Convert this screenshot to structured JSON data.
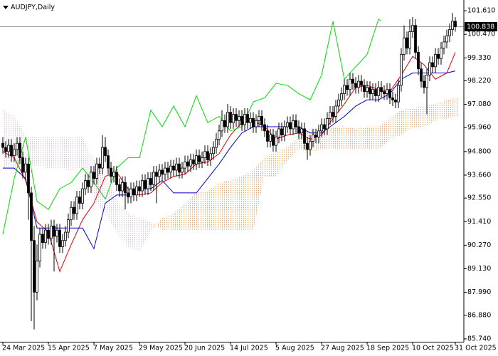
{
  "chart_data": {
    "type": "candlestick",
    "title": "AUDJPY,Daily",
    "xlim": [
      -1,
      162
    ],
    "ylim": [
      85.6,
      102.13
    ],
    "yticks": [
      {
        "value": 101.61,
        "label": "101.610"
      },
      {
        "value": 100.47,
        "label": "100.470"
      },
      {
        "value": 99.33,
        "label": "99.330"
      },
      {
        "value": 98.22,
        "label": "98.220"
      },
      {
        "value": 97.08,
        "label": "97.080"
      },
      {
        "value": 95.96,
        "label": "95.960"
      },
      {
        "value": 94.8,
        "label": "94.800"
      },
      {
        "value": 93.66,
        "label": "93.660"
      },
      {
        "value": 92.55,
        "label": "92.550"
      },
      {
        "value": 91.41,
        "label": "91.410"
      },
      {
        "value": 90.27,
        "label": "90.270"
      },
      {
        "value": 89.13,
        "label": "89.130"
      },
      {
        "value": 87.99,
        "label": "87.990"
      },
      {
        "value": 86.88,
        "label": "86.880"
      },
      {
        "value": 85.74,
        "label": "85.740"
      }
    ],
    "xticks": [
      {
        "value": 0,
        "label": "24 Mar 2025"
      },
      {
        "value": 16,
        "label": "15 Apr 2025"
      },
      {
        "value": 32,
        "label": "7 May 2025"
      },
      {
        "value": 48,
        "label": "29 May 2025"
      },
      {
        "value": 64,
        "label": "20 Jun 2025"
      },
      {
        "value": 80,
        "label": "14 Jul 2025"
      },
      {
        "value": 96,
        "label": "5 Aug 2025"
      },
      {
        "value": 112,
        "label": "27 Aug 2025"
      },
      {
        "value": 128,
        "label": "18 Sep 2025"
      },
      {
        "value": 144,
        "label": "10 Oct 2025"
      },
      {
        "value": 159,
        "label": "31 Oct 2025"
      }
    ],
    "last_price": {
      "value": 100.838,
      "label": "100.838"
    },
    "candle_color": "#000000",
    "up_color": "#ffffff",
    "down_color": "#000000",
    "open": [
      95.2,
      95.0,
      94.8,
      95.1,
      94.6,
      94.9,
      95.2,
      94.5,
      93.8,
      94.2,
      92.8,
      90.5,
      88.0,
      89.5,
      90.8,
      90.4,
      91.0,
      90.6,
      91.2,
      90.7,
      91.0,
      90.2,
      90.5,
      90.9,
      91.5,
      92.1,
      91.8,
      92.6,
      92.3,
      93.0,
      93.4,
      93.1,
      93.8,
      93.5,
      94.2,
      94.0,
      95.0,
      94.6,
      94.0,
      93.6,
      93.8,
      93.2,
      92.9,
      93.3,
      92.8,
      92.6,
      93.0,
      92.7,
      93.1,
      92.9,
      93.4,
      93.0,
      93.5,
      93.2,
      93.8,
      93.6,
      93.9,
      93.7,
      94.0,
      93.8,
      94.1,
      93.9,
      94.2,
      93.8,
      94.0,
      94.3,
      94.1,
      94.4,
      94.2,
      94.6,
      94.3,
      94.5,
      94.8,
      94.4,
      94.7,
      95.0,
      95.4,
      95.8,
      96.3,
      96.0,
      96.7,
      96.2,
      96.6,
      96.3,
      96.5,
      96.1,
      96.6,
      96.2,
      96.4,
      96.0,
      96.3,
      96.5,
      96.1,
      95.8,
      95.3,
      95.6,
      95.1,
      95.5,
      95.9,
      95.6,
      96.0,
      96.2,
      95.9,
      96.3,
      96.0,
      95.7,
      95.9,
      95.2,
      94.9,
      95.3,
      95.6,
      95.5,
      95.8,
      96.1,
      95.9,
      96.4,
      96.7,
      96.5,
      97.0,
      97.3,
      97.6,
      98.0,
      97.8,
      98.3,
      98.1,
      97.9,
      98.2,
      98.0,
      97.7,
      97.9,
      97.6,
      97.8,
      97.5,
      97.9,
      97.7,
      97.6,
      97.8,
      97.4,
      97.3,
      97.2,
      98.0,
      99.5,
      100.3,
      99.8,
      100.6,
      100.9,
      99.6,
      98.8,
      98.2,
      97.9,
      98.5,
      99.1,
      98.9,
      99.5,
      99.3,
      99.8,
      100.1,
      100.4,
      100.7,
      101.1
    ],
    "high": [
      95.5,
      95.3,
      95.4,
      95.4,
      95.2,
      95.5,
      95.5,
      94.8,
      94.5,
      94.5,
      93.1,
      91.2,
      90.3,
      91.1,
      91.1,
      91.3,
      91.3,
      91.5,
      91.5,
      91.3,
      91.3,
      90.8,
      91.2,
      91.8,
      92.4,
      92.4,
      92.9,
      92.9,
      93.3,
      93.7,
      93.7,
      94.1,
      94.1,
      94.5,
      94.5,
      95.6,
      95.5,
      94.9,
      94.3,
      94.1,
      94.1,
      93.5,
      93.6,
      93.6,
      93.1,
      93.3,
      93.3,
      93.4,
      93.4,
      93.7,
      93.7,
      93.8,
      93.8,
      94.1,
      94.1,
      94.2,
      94.2,
      94.3,
      94.3,
      94.4,
      94.4,
      94.5,
      94.5,
      94.3,
      94.6,
      94.6,
      94.7,
      94.7,
      94.9,
      94.9,
      94.8,
      95.1,
      95.1,
      95.0,
      95.3,
      95.7,
      96.1,
      96.8,
      96.6,
      97.1,
      97.0,
      96.9,
      96.9,
      96.8,
      96.8,
      96.9,
      96.9,
      96.7,
      96.7,
      96.6,
      96.8,
      96.8,
      96.4,
      96.1,
      95.9,
      95.9,
      95.8,
      96.2,
      96.2,
      96.3,
      96.5,
      96.5,
      96.6,
      96.6,
      96.3,
      96.2,
      96.2,
      95.5,
      95.6,
      95.9,
      95.9,
      96.1,
      96.4,
      96.4,
      96.7,
      97.0,
      97.0,
      97.3,
      97.6,
      97.9,
      98.3,
      98.3,
      98.6,
      98.6,
      98.4,
      98.5,
      98.5,
      98.3,
      98.2,
      98.2,
      98.1,
      98.1,
      98.2,
      98.2,
      98.0,
      98.1,
      98.1,
      97.7,
      97.6,
      98.3,
      99.8,
      100.9,
      100.6,
      101.2,
      101.3,
      101.2,
      99.9,
      99.1,
      98.5,
      98.8,
      99.4,
      99.4,
      99.8,
      99.8,
      100.1,
      100.4,
      100.7,
      101.0,
      101.5,
      101.3
    ],
    "low": [
      94.7,
      94.5,
      94.5,
      94.3,
      94.3,
      94.6,
      94.2,
      93.5,
      93.5,
      91.5,
      86.6,
      86.2,
      87.6,
      89.2,
      90.1,
      90.1,
      90.3,
      90.3,
      89.0,
      90.4,
      89.9,
      89.9,
      90.2,
      90.6,
      91.2,
      91.5,
      91.5,
      92.0,
      92.0,
      92.7,
      92.8,
      92.8,
      93.2,
      93.2,
      93.7,
      93.7,
      94.3,
      93.7,
      93.3,
      93.3,
      92.9,
      92.6,
      92.6,
      92.0,
      92.3,
      92.3,
      92.4,
      92.4,
      92.6,
      92.6,
      92.7,
      92.7,
      92.9,
      92.9,
      92.3,
      93.3,
      93.4,
      93.4,
      93.5,
      93.5,
      93.6,
      93.6,
      93.5,
      93.5,
      93.7,
      93.8,
      93.8,
      93.9,
      93.9,
      94.0,
      94.0,
      94.2,
      94.1,
      94.1,
      94.4,
      94.7,
      95.1,
      95.5,
      95.7,
      95.7,
      95.9,
      95.9,
      96.0,
      96.0,
      95.8,
      95.8,
      95.9,
      95.9,
      95.7,
      95.7,
      96.0,
      95.8,
      95.5,
      95.0,
      95.0,
      94.8,
      94.8,
      95.2,
      95.3,
      95.3,
      95.7,
      95.6,
      95.6,
      95.7,
      95.4,
      95.4,
      94.9,
      94.4,
      94.6,
      95.0,
      95.2,
      95.2,
      95.5,
      95.6,
      95.6,
      96.1,
      96.2,
      96.2,
      96.7,
      97.0,
      97.3,
      97.5,
      97.5,
      97.8,
      97.6,
      97.6,
      97.7,
      97.4,
      97.4,
      97.3,
      97.3,
      97.2,
      97.2,
      97.4,
      97.3,
      97.3,
      97.1,
      97.0,
      96.9,
      96.9,
      97.7,
      99.2,
      99.5,
      99.5,
      100.3,
      99.3,
      98.5,
      97.9,
      97.6,
      96.6,
      98.2,
      98.6,
      98.6,
      99.0,
      99.0,
      99.5,
      99.8,
      100.1,
      100.4,
      100.6
    ],
    "close": [
      95.0,
      94.8,
      95.1,
      94.6,
      94.9,
      95.2,
      94.5,
      93.8,
      94.2,
      92.8,
      90.5,
      88.0,
      89.5,
      90.8,
      90.4,
      91.0,
      90.6,
      91.2,
      90.7,
      91.0,
      90.2,
      90.5,
      90.9,
      91.5,
      92.1,
      91.8,
      92.6,
      92.3,
      93.0,
      93.4,
      93.1,
      93.8,
      93.5,
      94.2,
      94.0,
      95.0,
      94.6,
      94.0,
      93.6,
      93.8,
      93.2,
      92.9,
      93.3,
      92.8,
      92.6,
      93.0,
      92.7,
      93.1,
      92.9,
      93.4,
      93.0,
      93.5,
      93.2,
      93.8,
      93.6,
      93.9,
      93.7,
      94.0,
      93.8,
      94.1,
      93.9,
      94.2,
      93.8,
      94.0,
      94.3,
      94.1,
      94.4,
      94.2,
      94.6,
      94.3,
      94.5,
      94.8,
      94.4,
      94.7,
      95.0,
      95.4,
      95.8,
      96.3,
      96.0,
      96.7,
      96.2,
      96.6,
      96.3,
      96.5,
      96.1,
      96.6,
      96.2,
      96.4,
      96.0,
      96.3,
      96.5,
      96.1,
      95.8,
      95.3,
      95.6,
      95.1,
      95.5,
      95.9,
      95.6,
      96.0,
      96.2,
      95.9,
      96.3,
      96.0,
      95.7,
      95.9,
      95.2,
      94.9,
      95.3,
      95.6,
      95.5,
      95.8,
      96.1,
      95.9,
      96.4,
      96.7,
      96.5,
      97.0,
      97.3,
      97.6,
      98.0,
      97.8,
      98.3,
      98.1,
      97.9,
      98.2,
      98.0,
      97.7,
      97.9,
      97.6,
      97.8,
      97.5,
      97.9,
      97.7,
      97.6,
      97.8,
      97.4,
      97.3,
      97.2,
      98.0,
      99.5,
      100.3,
      99.8,
      100.6,
      100.9,
      99.6,
      98.8,
      98.2,
      97.9,
      98.5,
      99.1,
      98.9,
      99.5,
      99.3,
      99.8,
      100.1,
      100.4,
      100.7,
      101.1,
      100.84
    ],
    "cloud": {
      "x": [
        0,
        4,
        8,
        12,
        16,
        20,
        24,
        28,
        32,
        36,
        40,
        44,
        48,
        52,
        56,
        60,
        64,
        68,
        72,
        76,
        80,
        84,
        88,
        92,
        96,
        100,
        104,
        108,
        112,
        116,
        120,
        124,
        128,
        132,
        136,
        140,
        144,
        148,
        152,
        156,
        160
      ],
      "a": [
        94.0,
        94.0,
        94.1,
        94.1,
        94.0,
        94.0,
        93.9,
        94.0,
        92.5,
        91.8,
        90.9,
        90.2,
        90.0,
        90.9,
        91.6,
        91.8,
        92.3,
        92.8,
        92.9,
        93.3,
        93.4,
        93.6,
        93.9,
        94.5,
        94.8,
        95.0,
        95.5,
        95.8,
        96.0,
        96.0,
        96.0,
        95.9,
        96.0,
        96.0,
        96.4,
        96.8,
        96.9,
        97.0,
        97.1,
        97.3,
        97.4
      ],
      "b": [
        96.8,
        96.5,
        95.6,
        95.5,
        95.5,
        95.5,
        95.5,
        95.5,
        94.4,
        93.6,
        92.5,
        91.8,
        91.6,
        91.4,
        91.0,
        91.0,
        91.0,
        91.0,
        91.0,
        91.0,
        91.0,
        91.0,
        91.0,
        93.6,
        93.6,
        94.4,
        94.9,
        94.8,
        94.9,
        94.9,
        94.9,
        94.9,
        94.9,
        94.9,
        95.4,
        95.6,
        96.0,
        96.0,
        96.3,
        96.4,
        96.5
      ],
      "a_above_color": "#f4a460",
      "b_above_color": "#d8bfd8"
    },
    "series": [
      {
        "color": "#e00000",
        "x": [
          0,
          4,
          8,
          12,
          16,
          20,
          24,
          28,
          32,
          36,
          40,
          44,
          48,
          52,
          56,
          60,
          64,
          68,
          72,
          76,
          80,
          84,
          88,
          92,
          96,
          100,
          104,
          108,
          112,
          116,
          120,
          124,
          128,
          132,
          136,
          140,
          144,
          148,
          152,
          156,
          159
        ],
        "values": [
          94.8,
          94.5,
          93.4,
          91.4,
          90.9,
          89.0,
          90.3,
          91.5,
          92.3,
          93.6,
          93.8,
          93.0,
          92.7,
          92.8,
          93.3,
          93.6,
          93.7,
          94.2,
          94.3,
          94.7,
          95.6,
          96.2,
          96.3,
          96.0,
          95.4,
          95.6,
          95.7,
          95.4,
          95.6,
          96.4,
          97.1,
          97.9,
          98.0,
          97.8,
          97.7,
          98.5,
          99.4,
          99.0,
          98.3,
          98.6,
          99.6
        ]
      },
      {
        "color": "#0000cc",
        "x": [
          0,
          4,
          8,
          12,
          16,
          20,
          24,
          28,
          32,
          36,
          40,
          44,
          48,
          52,
          56,
          60,
          64,
          68,
          72,
          76,
          80,
          84,
          88,
          92,
          96,
          100,
          104,
          108,
          112,
          116,
          120,
          124,
          128,
          132,
          136,
          140,
          144,
          148,
          152,
          156,
          159
        ],
        "values": [
          94.0,
          94.0,
          93.5,
          91.1,
          91.1,
          91.1,
          91.1,
          91.1,
          90.1,
          92.3,
          92.7,
          92.7,
          93.0,
          93.0,
          93.4,
          92.8,
          92.8,
          92.8,
          93.5,
          94.2,
          95.0,
          95.7,
          96.0,
          96.0,
          96.0,
          96.0,
          96.0,
          95.7,
          95.7,
          96.1,
          96.5,
          97.0,
          97.3,
          97.3,
          97.6,
          98.3,
          98.6,
          98.6,
          98.6,
          98.6,
          98.7
        ]
      },
      {
        "color": "#00dd00",
        "x": [
          0,
          4,
          8,
          12,
          16,
          20,
          24,
          28,
          32,
          36,
          40,
          44,
          48,
          52,
          56,
          60,
          64,
          68,
          72,
          76,
          80,
          84,
          88,
          92,
          96,
          100,
          104,
          108,
          112,
          116,
          120,
          124,
          128,
          132,
          133
        ],
        "values": [
          90.8,
          93.5,
          95.5,
          92.4,
          92.0,
          93.0,
          93.3,
          94.0,
          93.3,
          92.5,
          94.0,
          94.5,
          94.5,
          96.8,
          96.0,
          97.0,
          96.0,
          97.5,
          96.2,
          96.5,
          95.8,
          96.0,
          97.2,
          97.4,
          98.1,
          98.0,
          97.6,
          97.3,
          98.5,
          101.1,
          98.3,
          98.9,
          99.5,
          101.2,
          101.1
        ]
      }
    ]
  }
}
